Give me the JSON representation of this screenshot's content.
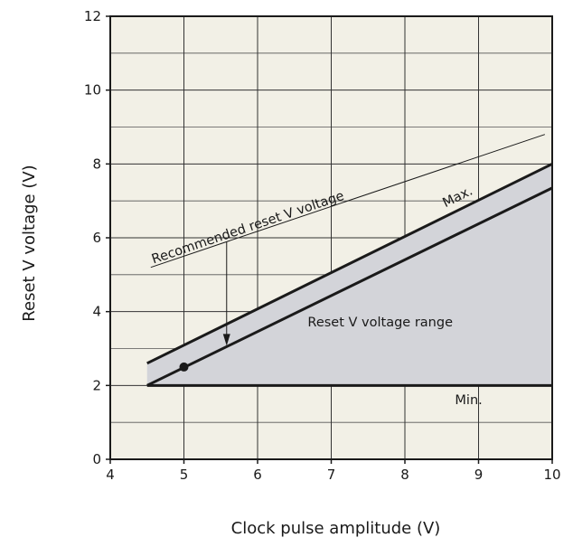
{
  "chart_data": {
    "type": "line",
    "title": "",
    "xlabel": "Clock pulse amplitude (V)",
    "ylabel": "Reset V voltage (V)",
    "xlim": [
      4,
      10
    ],
    "ylim": [
      0,
      12
    ],
    "grid": true,
    "x_ticks": [
      "4",
      "5",
      "6",
      "7",
      "8",
      "9",
      "10"
    ],
    "y_ticks": [
      "0",
      "2",
      "4",
      "6",
      "8",
      "10",
      "12"
    ],
    "plot_background": "#f2f0e6",
    "range_fill_color": "#d3d4d9",
    "series": [
      {
        "key": "max",
        "values": [
          [
            4.5,
            2.6
          ],
          [
            10,
            8.0
          ]
        ]
      },
      {
        "key": "recommended",
        "values": [
          [
            4.5,
            2.0
          ],
          [
            10,
            7.35
          ]
        ]
      },
      {
        "key": "min",
        "values": [
          [
            4.5,
            2.0
          ],
          [
            10,
            2.0
          ]
        ]
      }
    ],
    "marker": {
      "x": 5,
      "y": 2.5
    },
    "annotations": {
      "recommended": "Recommended reset V voltage",
      "max": "Max.",
      "range": "Reset V voltage range",
      "min": "Min."
    }
  }
}
